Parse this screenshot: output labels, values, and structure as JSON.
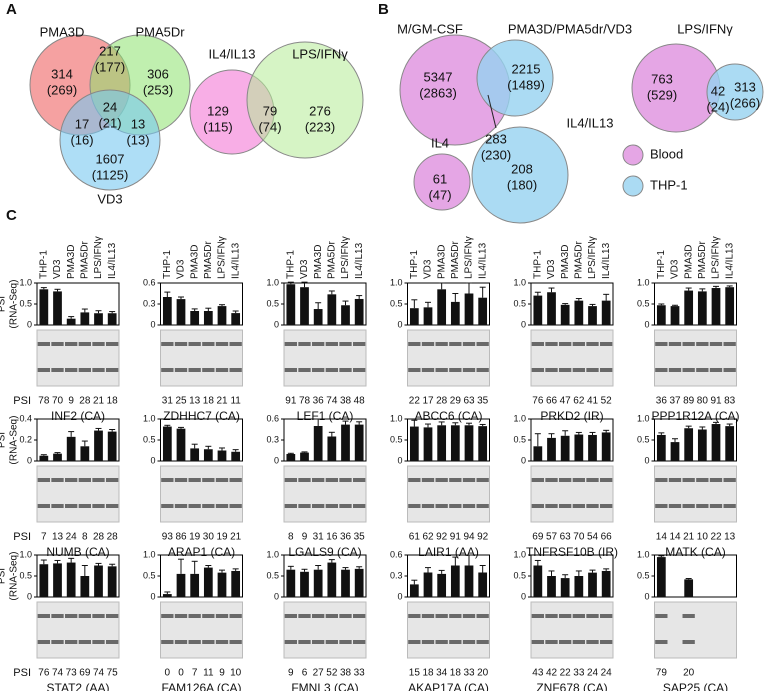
{
  "panel_labels": [
    "A",
    "B",
    "C"
  ],
  "venn_a1": {
    "sets": [
      "PMA3D",
      "PMA5Dr",
      "VD3"
    ],
    "regions": [
      [
        "314",
        "(269)"
      ],
      [
        "217",
        "(177)"
      ],
      [
        "306",
        "(253)"
      ],
      [
        "24",
        "(21)"
      ],
      [
        "17",
        "(16)"
      ],
      [
        "13",
        "(13)"
      ],
      [
        "1607",
        "(1125)"
      ]
    ]
  },
  "venn_a2": {
    "sets": [
      "IL4/IL13",
      "LPS/IFNγ"
    ],
    "regions": [
      [
        "129",
        "(115)"
      ],
      [
        "79",
        "(74)"
      ],
      [
        "276",
        "(223)"
      ]
    ]
  },
  "venn_b1": {
    "sets": [
      "M/GM-CSF",
      "PMA3D/PMA5dr/VD3"
    ],
    "regions": [
      [
        "5347",
        "(2863)"
      ],
      [
        "283",
        "(230)"
      ],
      [
        "2215",
        "(1489)"
      ]
    ]
  },
  "venn_b2": {
    "sets": [
      "LPS/IFNγ"
    ],
    "regions": [
      [
        "763",
        "(529)"
      ],
      [
        "42",
        "(24)"
      ],
      [
        "313",
        "(266)"
      ]
    ]
  },
  "venn_b3": {
    "sets": [
      "IL4",
      "IL4/IL13"
    ],
    "regions": [
      [
        "61",
        "(47)"
      ],
      [
        "208",
        "(180)"
      ]
    ]
  },
  "legend": [
    "Blood",
    "THP-1"
  ],
  "conditions": [
    "THP-1",
    "VD3",
    "PMA3D",
    "PMA5Dr",
    "LPS/IFNγ",
    "IL4/IL13"
  ],
  "y_label": [
    "PSI",
    "(RNA-Seq)"
  ],
  "psi_label": "PSI",
  "charts": [
    {
      "title": "INF2 (CA)",
      "ylim": [
        0,
        1
      ],
      "yticks": [
        0,
        0.5,
        {
          "value": 1,
          "label": "1.0"
        }
      ],
      "values": [
        0.85,
        0.8,
        0.15,
        0.3,
        0.28,
        0.28
      ],
      "errors": [
        0.04,
        0.05,
        0.05,
        0.08,
        0.06,
        0.04
      ],
      "psi": [
        78,
        70,
        9,
        28,
        21,
        18
      ]
    },
    {
      "title": "ZDHHC7 (CA)",
      "ylim": [
        0,
        0.6
      ],
      "yticks": [
        0,
        0.3,
        0.6
      ],
      "values": [
        0.4,
        0.37,
        0.2,
        0.2,
        0.27,
        0.17
      ],
      "errors": [
        0.07,
        0.03,
        0.03,
        0.04,
        0.02,
        0.03
      ],
      "psi": [
        31,
        25,
        13,
        18,
        21,
        11
      ]
    },
    {
      "title": "LEF1 (CA)",
      "ylim": [
        0,
        1
      ],
      "yticks": [
        0,
        0.5,
        {
          "value": 1,
          "label": "1.0"
        }
      ],
      "values": [
        0.97,
        0.9,
        0.38,
        0.73,
        0.47,
        0.62
      ],
      "errors": [
        0.05,
        0.12,
        0.15,
        0.08,
        0.1,
        0.08
      ],
      "psi": [
        91,
        78,
        36,
        74,
        38,
        48
      ]
    },
    {
      "title": "ABCC6 (CA)",
      "ylim": [
        0,
        1
      ],
      "yticks": [
        0,
        0.5,
        {
          "value": 1,
          "label": "1.0"
        }
      ],
      "values": [
        0.4,
        0.42,
        0.85,
        0.55,
        0.75,
        0.65
      ],
      "errors": [
        0.2,
        0.12,
        0.15,
        0.2,
        0.25,
        0.25
      ],
      "psi": [
        22,
        17,
        28,
        29,
        63,
        35
      ]
    },
    {
      "title": "PRKD2 (IR)",
      "ylim": [
        0,
        1
      ],
      "yticks": [
        0,
        0.5,
        {
          "value": 1,
          "label": "1.0"
        }
      ],
      "values": [
        0.7,
        0.78,
        0.48,
        0.58,
        0.45,
        0.58
      ],
      "errors": [
        0.08,
        0.1,
        0.03,
        0.05,
        0.04,
        0.15
      ],
      "psi": [
        76,
        66,
        47,
        62,
        41,
        52
      ]
    },
    {
      "title": "PPP1R12A (CA)",
      "ylim": [
        0,
        1
      ],
      "yticks": [
        0,
        0.5,
        {
          "value": 1,
          "label": "1.0"
        }
      ],
      "values": [
        0.47,
        0.45,
        0.82,
        0.8,
        0.88,
        0.9
      ],
      "errors": [
        0.03,
        0.02,
        0.06,
        0.06,
        0.04,
        0.03
      ],
      "psi": [
        36,
        37,
        89,
        80,
        91,
        83
      ]
    },
    {
      "title": "NUMB (CA)",
      "ylim": [
        0,
        0.4
      ],
      "yticks": [
        0,
        0.2,
        0.4
      ],
      "values": [
        0.05,
        0.07,
        0.23,
        0.14,
        0.29,
        0.28
      ],
      "errors": [
        0.01,
        0.01,
        0.05,
        0.05,
        0.02,
        0.02
      ],
      "psi": [
        7,
        13,
        24,
        8,
        28,
        28
      ]
    },
    {
      "title": "ARAP1 (CA)",
      "ylim": [
        0,
        1
      ],
      "yticks": [
        0,
        0.5,
        {
          "value": 1,
          "label": "1.0"
        }
      ],
      "values": [
        0.82,
        0.77,
        0.3,
        0.28,
        0.25,
        0.22
      ],
      "errors": [
        0.03,
        0.03,
        0.1,
        0.07,
        0.06,
        0.05
      ],
      "psi": [
        93,
        86,
        19,
        30,
        19,
        21
      ]
    },
    {
      "title": "LGALS9 (CA)",
      "ylim": [
        0,
        0.6
      ],
      "yticks": [
        0,
        0.3,
        0.6
      ],
      "values": [
        0.1,
        0.12,
        0.5,
        0.35,
        0.52,
        0.52
      ],
      "errors": [
        0.01,
        0.01,
        0.1,
        0.06,
        0.05,
        0.04
      ],
      "psi": [
        8,
        9,
        31,
        16,
        36,
        35
      ]
    },
    {
      "title": "LAIR1 (AA)",
      "ylim": [
        0,
        1
      ],
      "yticks": [
        0,
        0.5,
        {
          "value": 1,
          "label": "1.0"
        }
      ],
      "values": [
        0.82,
        0.8,
        0.85,
        0.85,
        0.85,
        0.83
      ],
      "errors": [
        0.15,
        0.08,
        0.08,
        0.06,
        0.05,
        0.04
      ],
      "psi": [
        61,
        62,
        92,
        91,
        94,
        92
      ]
    },
    {
      "title": "TNFRSF10B (IR)",
      "ylim": [
        0,
        1
      ],
      "yticks": [
        0,
        0.5,
        {
          "value": 1,
          "label": "1.0"
        }
      ],
      "values": [
        0.35,
        0.55,
        0.6,
        0.63,
        0.62,
        0.68
      ],
      "errors": [
        0.3,
        0.1,
        0.12,
        0.05,
        0.06,
        0.05
      ],
      "psi": [
        69,
        57,
        63,
        70,
        54,
        66
      ]
    },
    {
      "title": "MATK (CA)",
      "ylim": [
        0,
        1
      ],
      "yticks": [
        0,
        0.5,
        {
          "value": 1,
          "label": "1.0"
        }
      ],
      "values": [
        0.62,
        0.45,
        0.78,
        0.75,
        0.88,
        0.83
      ],
      "errors": [
        0.05,
        0.08,
        0.05,
        0.06,
        0.04,
        0.05
      ],
      "psi": [
        14,
        14,
        21,
        10,
        22,
        13
      ]
    },
    {
      "title": "STAT2 (AA)",
      "ylim": [
        0,
        1
      ],
      "yticks": [
        0,
        0.5,
        {
          "value": 1,
          "label": "1.0"
        }
      ],
      "values": [
        0.78,
        0.8,
        0.82,
        0.5,
        0.75,
        0.73
      ],
      "errors": [
        0.1,
        0.07,
        0.1,
        0.25,
        0.05,
        0.05
      ],
      "psi": [
        76,
        74,
        73,
        69,
        74,
        75
      ]
    },
    {
      "title": "FAM126A (CA)",
      "ylim": [
        0,
        1
      ],
      "yticks": [
        0,
        0.5,
        {
          "value": 1,
          "label": "1.0"
        }
      ],
      "values": [
        0.07,
        0.55,
        0.55,
        0.7,
        0.58,
        0.62
      ],
      "errors": [
        0.05,
        0.35,
        0.3,
        0.05,
        0.06,
        0.05
      ],
      "psi": [
        0,
        0,
        7,
        11,
        9,
        10
      ]
    },
    {
      "title": "FMNL3 (CA)",
      "ylim": [
        0,
        1
      ],
      "yticks": [
        0,
        0.5,
        {
          "value": 1,
          "label": "1.0"
        }
      ],
      "values": [
        0.65,
        0.6,
        0.65,
        0.82,
        0.65,
        0.67
      ],
      "errors": [
        0.08,
        0.06,
        0.1,
        0.07,
        0.05,
        0.05
      ],
      "psi": [
        9,
        6,
        27,
        52,
        38,
        33
      ]
    },
    {
      "title": "AKAP17A (CA)",
      "ylim": [
        0,
        0.6
      ],
      "yticks": [
        0,
        0.3,
        0.6
      ],
      "values": [
        0.18,
        0.35,
        0.33,
        0.45,
        0.45,
        0.35
      ],
      "errors": [
        0.06,
        0.07,
        0.05,
        0.12,
        0.15,
        0.1
      ],
      "psi": [
        15,
        18,
        34,
        18,
        33,
        20
      ]
    },
    {
      "title": "ZNF678 (CA)",
      "ylim": [
        0,
        1
      ],
      "yticks": [
        0,
        0.5,
        {
          "value": 1,
          "label": "1.0"
        }
      ],
      "values": [
        0.75,
        0.5,
        0.45,
        0.5,
        0.58,
        0.62
      ],
      "errors": [
        0.12,
        0.12,
        0.08,
        0.12,
        0.06,
        0.05
      ],
      "psi": [
        43,
        42,
        22,
        33,
        24,
        24
      ]
    },
    {
      "title": "SAP25 (CA)",
      "ylim": [
        0,
        1
      ],
      "yticks": [
        0,
        0.5,
        {
          "value": 1,
          "label": "1.0"
        }
      ],
      "values": [
        0.95,
        null,
        0.42,
        null,
        null,
        null
      ],
      "errors": [
        0.03,
        null,
        0.02,
        null,
        null,
        null
      ],
      "psi": [
        79,
        null,
        20,
        null,
        null,
        null
      ]
    }
  ]
}
